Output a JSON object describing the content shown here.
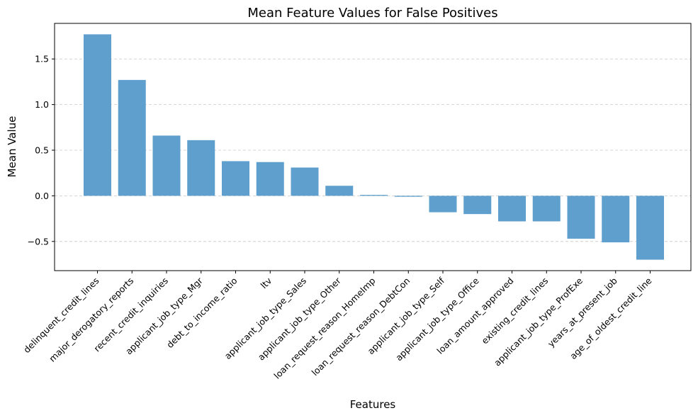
{
  "chart_data": {
    "type": "bar",
    "title": "Mean Feature Values for False Positives",
    "xlabel": "Features",
    "ylabel": "Mean Value",
    "ylim": [
      -0.82,
      1.89
    ],
    "yticks": [
      -0.5,
      0.0,
      0.5,
      1.0,
      1.5
    ],
    "ytick_labels": [
      "−0.5",
      "0.0",
      "0.5",
      "1.0",
      "1.5"
    ],
    "grid": "horizontal dashed",
    "bar_color": "#5f9fcd",
    "categories": [
      "delinquent_credit_lines",
      "major_derogatory_reports",
      "recent_credit_inquiries",
      "applicant_job_type_Mgr",
      "debt_to_income_ratio",
      "ltv",
      "applicant_job_type_Sales",
      "applicant_job_type_Other",
      "loan_request_reason_HomeImp",
      "loan_request_reason_DebtCon",
      "applicant_job_type_Self",
      "applicant_job_type_Office",
      "loan_amount_approved",
      "existing_credit_lines",
      "applicant_job_type_ProfExe",
      "years_at_present_job",
      "age_of_oldest_credit_line"
    ],
    "values": [
      1.77,
      1.27,
      0.66,
      0.61,
      0.38,
      0.37,
      0.31,
      0.11,
      0.01,
      -0.01,
      -0.18,
      -0.2,
      -0.28,
      -0.28,
      -0.47,
      -0.51,
      -0.7
    ]
  }
}
